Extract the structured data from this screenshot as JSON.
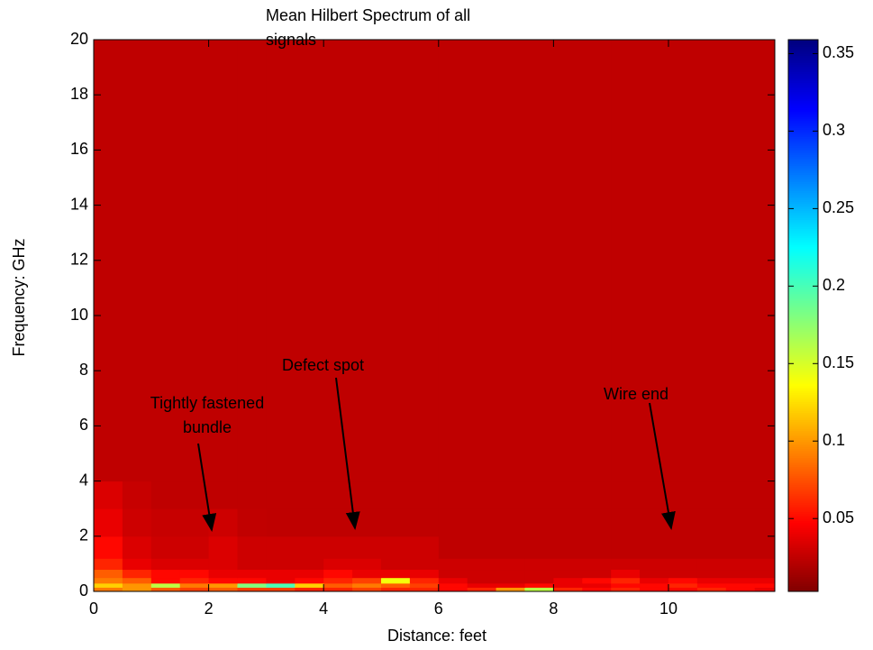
{
  "chart_data": {
    "type": "heatmap",
    "title": "Mean Hilbert Spectrum of all signals",
    "x_label": "Distance: feet",
    "y_label": "Frequency: GHz",
    "colormap": "jet_r",
    "x_edges": [
      0,
      0.5,
      1,
      1.5,
      2,
      2.5,
      3,
      3.5,
      4,
      4.5,
      5,
      5.5,
      6,
      6.5,
      7,
      7.5,
      8,
      8.5,
      9,
      9.5,
      10,
      10.5,
      11,
      11.5,
      11.85
    ],
    "y_edges": [
      0,
      0.15,
      0.3,
      0.5,
      0.8,
      1.2,
      2,
      3,
      4,
      20
    ],
    "z": [
      [
        0.09,
        0.1,
        0.08,
        0.07,
        0.08,
        0.07,
        0.07,
        0.06,
        0.06,
        0.07,
        0.06,
        0.06,
        0.05,
        0.06,
        0.1,
        0.16,
        0.06,
        0.05,
        0.06,
        0.05,
        0.05,
        0.06,
        0.05,
        0.04
      ],
      [
        0.12,
        0.1,
        0.16,
        0.09,
        0.1,
        0.18,
        0.2,
        0.12,
        0.08,
        0.09,
        0.08,
        0.07,
        0.05,
        0.04,
        0.04,
        0.05,
        0.04,
        0.04,
        0.05,
        0.05,
        0.06,
        0.05,
        0.05,
        0.05
      ],
      [
        0.09,
        0.08,
        0.05,
        0.06,
        0.05,
        0.05,
        0.04,
        0.05,
        0.06,
        0.07,
        0.14,
        0.06,
        0.04,
        0.03,
        0.03,
        0.03,
        0.04,
        0.05,
        0.06,
        0.04,
        0.05,
        0.04,
        0.04,
        0.04
      ],
      [
        0.08,
        0.06,
        0.05,
        0.05,
        0.04,
        0.04,
        0.04,
        0.04,
        0.05,
        0.04,
        0.04,
        0.04,
        0.03,
        0.03,
        0.03,
        0.03,
        0.03,
        0.03,
        0.04,
        0.03,
        0.03,
        0.03,
        0.03,
        0.03
      ],
      [
        0.06,
        0.04,
        0.035,
        0.035,
        0.035,
        0.03,
        0.03,
        0.03,
        0.035,
        0.035,
        0.03,
        0.03,
        0.03,
        0.03,
        0.03,
        0.03,
        0.03,
        0.03,
        0.03,
        0.03,
        0.03,
        0.03,
        0.03,
        0.03
      ],
      [
        0.05,
        0.035,
        0.03,
        0.03,
        0.035,
        0.03,
        0.03,
        0.03,
        0.03,
        0.03,
        0.03,
        0.03,
        0.025,
        0.025,
        0.025,
        0.025,
        0.025,
        0.025,
        0.025,
        0.025,
        0.025,
        0.025,
        0.025,
        0.025
      ],
      [
        0.04,
        0.03,
        0.028,
        0.028,
        0.03,
        0.026,
        0.025,
        0.025,
        0.025,
        0.025,
        0.025,
        0.025,
        0.025,
        0.025,
        0.025,
        0.025,
        0.025,
        0.025,
        0.025,
        0.025,
        0.025,
        0.025,
        0.025,
        0.025
      ],
      [
        0.035,
        0.028,
        0.025,
        0.025,
        0.025,
        0.025,
        0.025,
        0.025,
        0.025,
        0.025,
        0.025,
        0.025,
        0.025,
        0.025,
        0.025,
        0.025,
        0.025,
        0.025,
        0.025,
        0.025,
        0.025,
        0.025,
        0.025,
        0.025
      ],
      [
        0.025,
        0.025,
        0.025,
        0.025,
        0.025,
        0.025,
        0.025,
        0.025,
        0.025,
        0.025,
        0.025,
        0.025,
        0.025,
        0.025,
        0.025,
        0.025,
        0.025,
        0.025,
        0.025,
        0.025,
        0.025,
        0.025,
        0.025,
        0.025
      ]
    ],
    "xlim": [
      0,
      11.85
    ],
    "ylim": [
      0,
      20
    ],
    "xticks": [
      0,
      2,
      4,
      6,
      8,
      10
    ],
    "yticks": [
      0,
      2,
      4,
      6,
      8,
      10,
      12,
      14,
      16,
      18,
      20
    ],
    "clim": [
      0.003,
      0.359
    ],
    "cticks": [
      0.05,
      0.1,
      0.15,
      0.2,
      0.25,
      0.3,
      0.35
    ],
    "annotations": [
      "Tightly fastened bundle",
      "Defect spot",
      "Wire end"
    ]
  }
}
